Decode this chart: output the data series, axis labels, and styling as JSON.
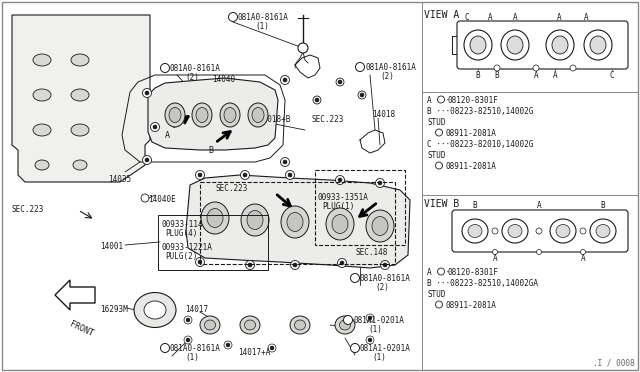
{
  "bg_color": "#ffffff",
  "line_color": "#1a1a1a",
  "text_color": "#1a1a1a",
  "watermark": ".I / 0008",
  "view_a_title": "VIEW A",
  "view_b_title": "VIEW B",
  "figsize": [
    6.4,
    3.72
  ],
  "dpi": 100,
  "view_a_parts": [
    [
      "A",
      "B08120-8301F"
    ],
    [
      "B",
      "08223-82510,14002G"
    ],
    [
      "",
      "STUD"
    ],
    [
      "N",
      "08911-2081A"
    ],
    [
      "C",
      "08223-82010,14002G"
    ],
    [
      "",
      "STUD"
    ],
    [
      "N",
      "08911-2081A"
    ]
  ],
  "view_b_parts": [
    [
      "A",
      "B08120-8301F"
    ],
    [
      "B",
      "08223-82510,14002GA"
    ],
    [
      "",
      "STUD"
    ],
    [
      "N",
      "08911-2081A"
    ]
  ]
}
